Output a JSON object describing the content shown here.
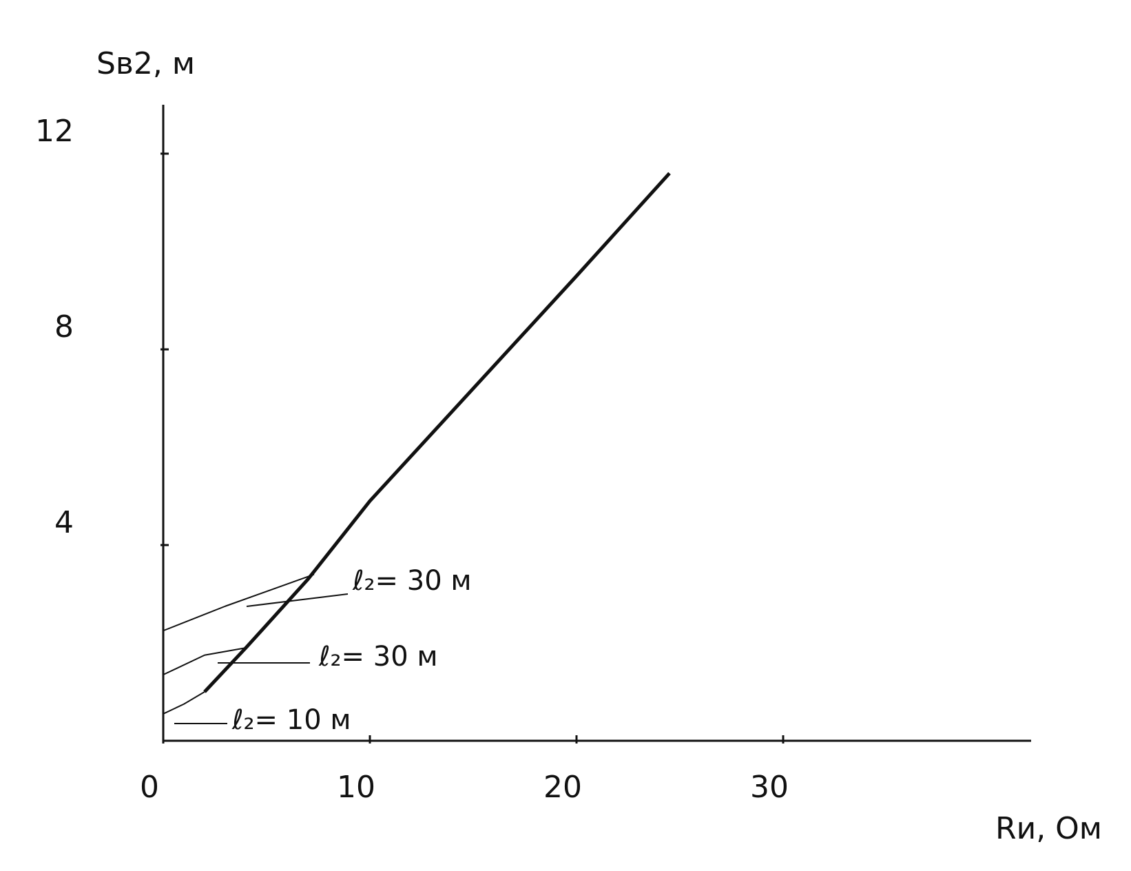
{
  "chart_data": {
    "type": "line",
    "y_label": "Sв2, м",
    "x_label": "Rи, Ом",
    "xlim": [
      0,
      42
    ],
    "ylim": [
      0,
      13
    ],
    "xticks": [
      0,
      10,
      20,
      30
    ],
    "yticks": [
      4,
      8,
      12
    ],
    "series": [
      {
        "color": "#111111",
        "width": 5,
        "x": [
          2,
          4,
          7,
          10,
          15,
          20,
          24.5
        ],
        "values": [
          1.0,
          1.9,
          3.3,
          4.9,
          7.2,
          9.5,
          11.6
        ]
      },
      {
        "name": "ℓ₂= 30 м",
        "color": "#111111",
        "width": 2,
        "x": [
          0,
          3,
          7.3
        ],
        "values": [
          2.25,
          2.75,
          3.4
        ]
      },
      {
        "name": "ℓ₂= 30 м",
        "color": "#111111",
        "width": 2,
        "x": [
          0,
          2,
          4
        ],
        "values": [
          1.35,
          1.75,
          1.9
        ]
      },
      {
        "name": "ℓ₂= 10 м",
        "color": "#111111",
        "width": 2,
        "x": [
          0,
          1,
          2
        ],
        "values": [
          0.55,
          0.75,
          1.0
        ]
      }
    ]
  }
}
